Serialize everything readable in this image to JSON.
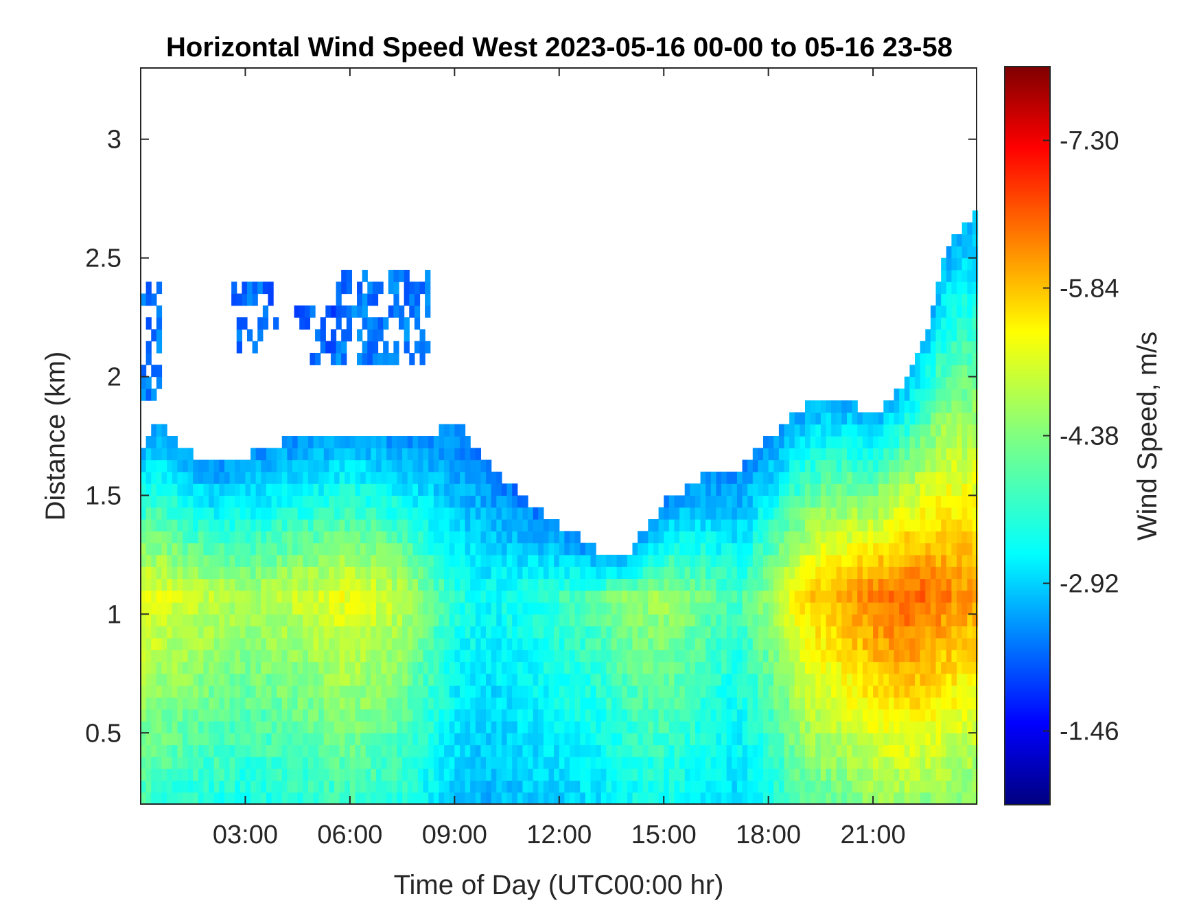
{
  "chart_data": {
    "type": "heatmap",
    "title": "Horizontal Wind Speed West 2023-05-16 00-00 to 05-16 23-58",
    "xlabel": "Time of Day (UTC00:00 hr)",
    "ylabel": "Distance (km)",
    "colorbar_label": "Wind Speed, m/s",
    "colormap": "jet",
    "colormap_direction": "reversed (more negative = red)",
    "xlim_hours": [
      0,
      23.97
    ],
    "ylim_km": [
      0.2,
      3.3
    ],
    "x_ticks": [
      {
        "value": 3,
        "label": "03:00"
      },
      {
        "value": 6,
        "label": "06:00"
      },
      {
        "value": 9,
        "label": "09:00"
      },
      {
        "value": 12,
        "label": "12:00"
      },
      {
        "value": 15,
        "label": "15:00"
      },
      {
        "value": 18,
        "label": "18:00"
      },
      {
        "value": 21,
        "label": "21:00"
      }
    ],
    "y_ticks": [
      {
        "value": 0.5,
        "label": "0.5"
      },
      {
        "value": 1,
        "label": "1"
      },
      {
        "value": 1.5,
        "label": "1.5"
      },
      {
        "value": 2,
        "label": "2"
      },
      {
        "value": 2.5,
        "label": "2.5"
      },
      {
        "value": 3,
        "label": "3"
      }
    ],
    "colorbar_range": [
      -0.73,
      -8.03
    ],
    "colorbar_ticks": [
      {
        "value": -1.46,
        "label": "-1.46"
      },
      {
        "value": -2.92,
        "label": "-2.92"
      },
      {
        "value": -4.38,
        "label": "-4.38"
      },
      {
        "value": -5.84,
        "label": "-5.84"
      },
      {
        "value": -7.3,
        "label": "-7.30"
      }
    ],
    "data_top_km": {
      "hours": [
        0,
        0.5,
        1,
        1.5,
        2,
        3,
        4,
        5,
        6,
        7,
        8,
        9,
        10,
        11,
        12,
        13,
        14,
        15,
        16,
        16.7,
        17.2,
        17.8,
        18.5,
        19.5,
        20.5,
        21,
        21.5,
        22,
        22.5,
        23,
        23.97
      ],
      "values": [
        1.7,
        1.8,
        1.7,
        1.65,
        1.6,
        1.65,
        1.7,
        1.72,
        1.75,
        1.72,
        1.72,
        1.78,
        1.6,
        1.45,
        1.35,
        1.25,
        1.25,
        1.45,
        1.55,
        1.6,
        1.6,
        1.7,
        1.8,
        1.9,
        1.85,
        1.8,
        1.9,
        2.0,
        2.2,
        2.5,
        2.7
      ]
    },
    "core_speed_profile": {
      "hours": [
        0,
        1.5,
        3,
        4.5,
        6,
        7.5,
        9,
        10,
        11,
        12,
        13,
        14,
        15,
        16,
        17,
        18,
        19,
        20,
        21,
        22,
        23,
        23.97
      ],
      "values": [
        -5.2,
        -4.9,
        -4.7,
        -4.9,
        -5.2,
        -4.8,
        -3.7,
        -3.5,
        -3.7,
        -3.9,
        -4.1,
        -4.5,
        -4.6,
        -4.3,
        -3.9,
        -4.6,
        -5.6,
        -5.9,
        -6.3,
        -6.5,
        -6.2,
        -6.0
      ]
    },
    "high_layer_returns": [
      {
        "hours": [
          0,
          0.45
        ],
        "km": [
          1.9,
          2.35
        ],
        "value": -2.5
      },
      {
        "hours": [
          2.6,
          3.9
        ],
        "km": [
          2.1,
          2.35
        ],
        "value": -2.4
      },
      {
        "hours": [
          4.4,
          5.6
        ],
        "km": [
          2.05,
          2.25
        ],
        "value": -2.3
      },
      {
        "hours": [
          5.6,
          8.2
        ],
        "km": [
          2.05,
          2.4
        ],
        "value": -2.5
      }
    ]
  }
}
